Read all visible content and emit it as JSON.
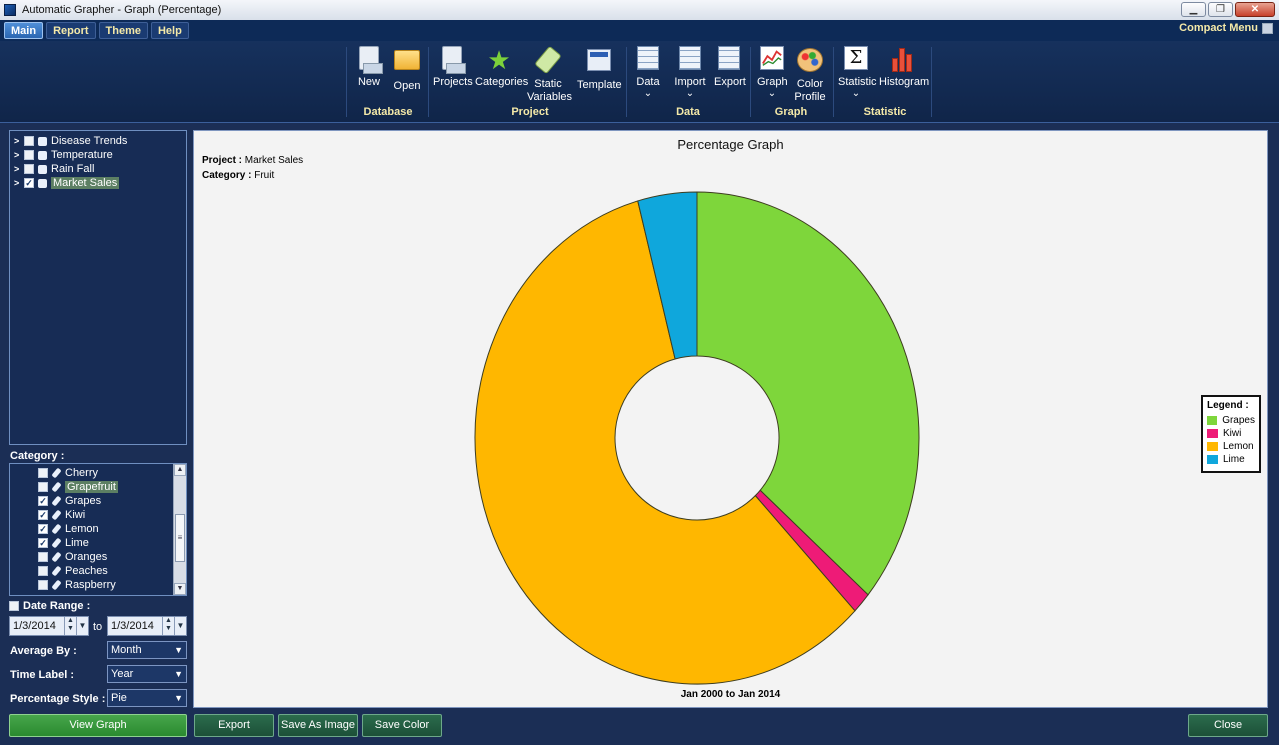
{
  "window": {
    "title": "Automatic Grapher - Graph (Percentage)"
  },
  "menu": {
    "tabs": [
      "Main",
      "Report",
      "Theme",
      "Help"
    ],
    "compact_menu": "Compact Menu"
  },
  "ribbon": {
    "items": {
      "new": "New",
      "open": "Open",
      "projects": "Projects",
      "categories": "Categories",
      "static_variables_1": "Static",
      "static_variables_2": "Variables",
      "template": "Template",
      "data": "Data",
      "import": "Import",
      "export": "Export",
      "graph": "Graph",
      "color_profile_1": "Color",
      "color_profile_2": "Profile",
      "statistic": "Statistic",
      "histogram": "Histogram"
    },
    "groups": {
      "database": "Database",
      "project": "Project",
      "data": "Data",
      "graph": "Graph",
      "statistic": "Statistic"
    }
  },
  "projects_tree": [
    {
      "label": "Disease Trends",
      "checked": false
    },
    {
      "label": "Temperature",
      "checked": false
    },
    {
      "label": "Rain Fall",
      "checked": false
    },
    {
      "label": "Market Sales",
      "checked": true
    }
  ],
  "category": {
    "header": "Category :",
    "items": [
      {
        "label": "Cherry",
        "checked": false
      },
      {
        "label": "Grapefruit",
        "checked": false
      },
      {
        "label": "Grapes",
        "checked": true
      },
      {
        "label": "Kiwi",
        "checked": true
      },
      {
        "label": "Lemon",
        "checked": true
      },
      {
        "label": "Lime",
        "checked": true
      },
      {
        "label": "Oranges",
        "checked": false
      },
      {
        "label": "Peaches",
        "checked": false
      },
      {
        "label": "Raspberry",
        "checked": false
      }
    ]
  },
  "controls": {
    "date_range_label": "Date Range :",
    "date_from": "1/3/2014",
    "to_label": "to",
    "date_to": "1/3/2014",
    "average_by_label": "Average By :",
    "average_by_value": "Month",
    "time_label_label": "Time Label :",
    "time_label_value": "Year",
    "percentage_style_label": "Percentage Style :",
    "percentage_style_value": "Pie"
  },
  "buttons": {
    "view_graph": "View Graph",
    "export": "Export",
    "save_image": "Save As Image",
    "save_color": "Save Color",
    "close": "Close"
  },
  "graph": {
    "title": "Percentage Graph",
    "project_label": "Project :",
    "project_value": "Market Sales",
    "category_label": "Category :",
    "category_value": "Fruit",
    "range_label": "Jan 2000  to  Jan 2014",
    "legend_title": "Legend :"
  },
  "chart_data": {
    "type": "pie",
    "title": "Percentage Graph",
    "donut": true,
    "legend_position": "right",
    "slices": [
      {
        "name": "Grapes",
        "value": 36.0,
        "color": "#7ed63b"
      },
      {
        "name": "Kiwi",
        "value": 1.4,
        "color": "#ee1b77"
      },
      {
        "name": "Lemon",
        "value": 58.3,
        "color": "#ffb700"
      },
      {
        "name": "Lime",
        "value": 4.3,
        "color": "#0fa7dc"
      }
    ]
  },
  "colors": {
    "background": "#1b2e55",
    "accent_label": "#f4e9a8",
    "plot_bg": "#f3f3f3"
  }
}
